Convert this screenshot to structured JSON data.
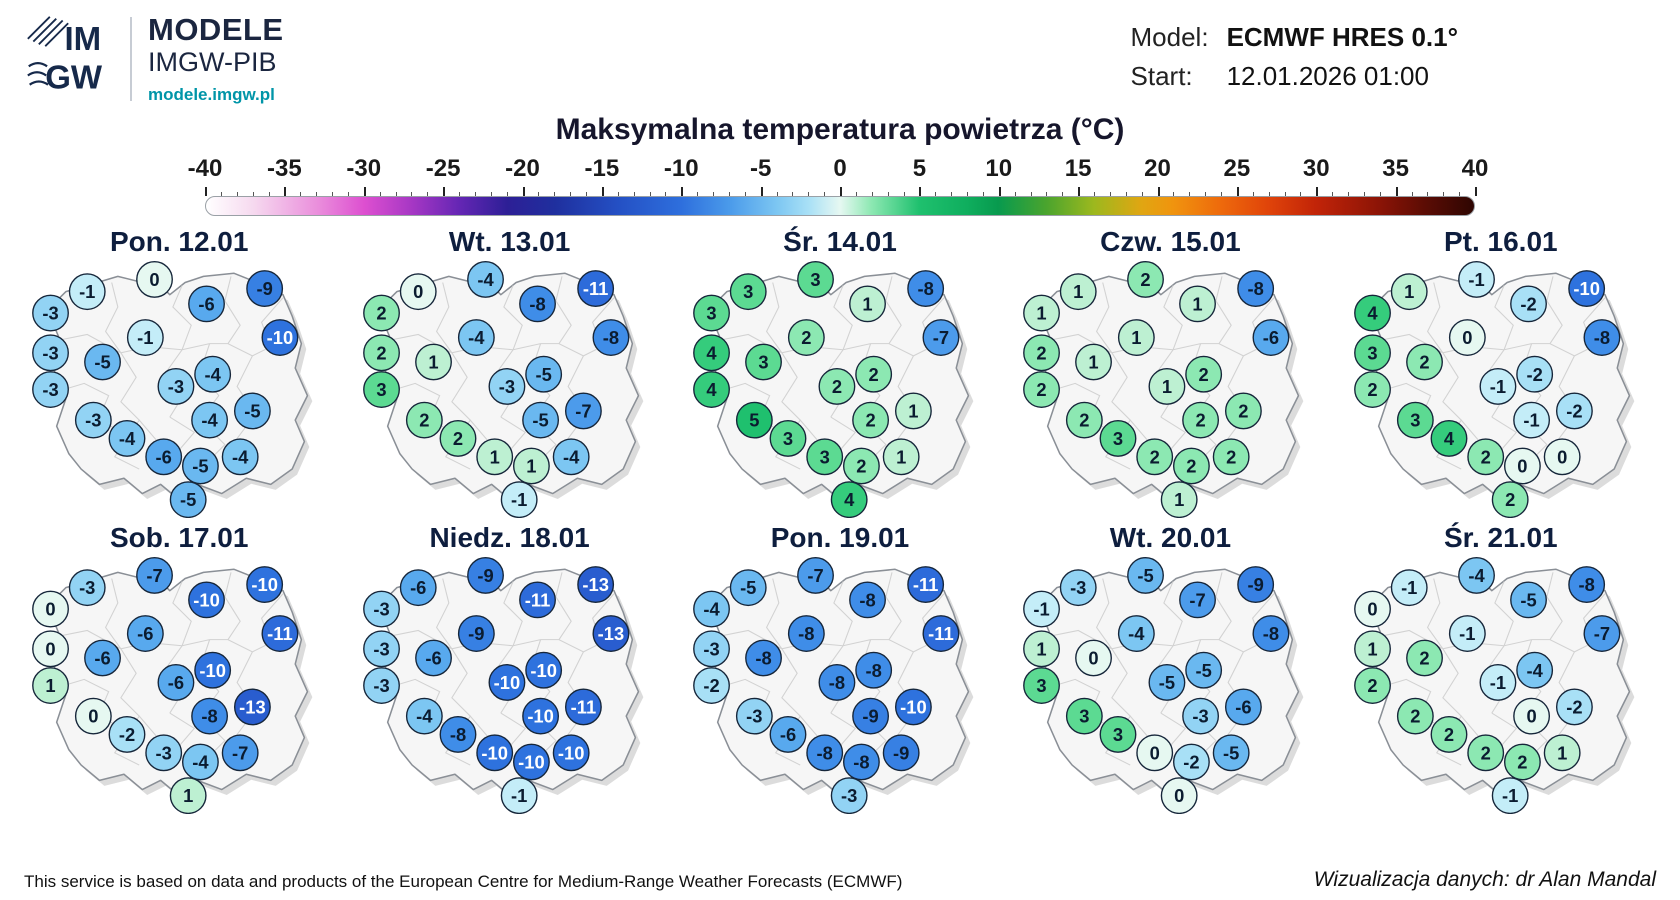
{
  "header": {
    "logo_text_top": "IM",
    "logo_text_bottom": "GW",
    "brand_title": "MODELE",
    "brand_subtitle": "IMGW-PIB",
    "brand_url": "modele.imgw.pl",
    "model_label": "Model:",
    "model_value": "ECMWF HRES 0.1°",
    "start_label": "Start:",
    "start_value": "12.01.2026 01:00"
  },
  "title": "Maksymalna temperatura powietrza (°C)",
  "colorbar": {
    "min": -40,
    "max": 40,
    "tick_labels": [
      -40,
      -35,
      -30,
      -25,
      -20,
      -15,
      -10,
      -5,
      0,
      5,
      10,
      15,
      20,
      25,
      30,
      35,
      40
    ],
    "gradient_stops": [
      [
        -40,
        "#ffffff"
      ],
      [
        -37,
        "#f6d9ef"
      ],
      [
        -33,
        "#ea8fdc"
      ],
      [
        -30,
        "#dd4fd0"
      ],
      [
        -27,
        "#a637c4"
      ],
      [
        -24,
        "#6426b4"
      ],
      [
        -21,
        "#2d1f96"
      ],
      [
        -18,
        "#1f2f9e"
      ],
      [
        -14,
        "#2450c4"
      ],
      [
        -10,
        "#2e6fdd"
      ],
      [
        -7,
        "#4a9aea"
      ],
      [
        -4,
        "#7cc6f2"
      ],
      [
        -2,
        "#a8e0f6"
      ],
      [
        0,
        "#e6f8f2"
      ],
      [
        2,
        "#8ce8b2"
      ],
      [
        5,
        "#1fc06e"
      ],
      [
        8,
        "#0fae5e"
      ],
      [
        10,
        "#089a4e"
      ],
      [
        13,
        "#4aa42e"
      ],
      [
        16,
        "#9cb81e"
      ],
      [
        19,
        "#e0a612"
      ],
      [
        21,
        "#f0940e"
      ],
      [
        24,
        "#ee6a0c"
      ],
      [
        27,
        "#e0440a"
      ],
      [
        30,
        "#c22408"
      ],
      [
        34,
        "#8c1406"
      ],
      [
        37,
        "#5a0c04"
      ],
      [
        40,
        "#2e0602"
      ]
    ]
  },
  "bubble_scale": {
    "white_text_max": -10,
    "stops": [
      [
        -20,
        "#1a2f9e"
      ],
      [
        -12,
        "#2b63d6"
      ],
      [
        -10,
        "#2e72de"
      ],
      [
        -8,
        "#3f8de8"
      ],
      [
        -6,
        "#58a9ee"
      ],
      [
        -4,
        "#7cc6f2"
      ],
      [
        -2,
        "#a8e0f6"
      ],
      [
        -1,
        "#c4edf8"
      ],
      [
        0,
        "#e6f8f1"
      ],
      [
        1,
        "#bdf0d2"
      ],
      [
        2,
        "#8ce8b2"
      ],
      [
        3,
        "#5cda92"
      ],
      [
        4,
        "#35cc7c"
      ],
      [
        5,
        "#1fc06e"
      ],
      [
        10,
        "#089a4e"
      ]
    ]
  },
  "chart_data": {
    "type": "heatmap",
    "title": "Maksymalna temperatura powietrza (°C)",
    "unit": "°C",
    "scale_min": -40,
    "scale_max": 40,
    "legend_position": "top",
    "points": [
      {
        "x": 20,
        "y": 11
      },
      {
        "x": 42,
        "y": 7
      },
      {
        "x": 59,
        "y": 15
      },
      {
        "x": 78,
        "y": 10
      },
      {
        "x": 8,
        "y": 18
      },
      {
        "x": 39,
        "y": 26
      },
      {
        "x": 83,
        "y": 26
      },
      {
        "x": 8,
        "y": 31
      },
      {
        "x": 25,
        "y": 34
      },
      {
        "x": 61,
        "y": 38
      },
      {
        "x": 8,
        "y": 43
      },
      {
        "x": 49,
        "y": 42
      },
      {
        "x": 22,
        "y": 53
      },
      {
        "x": 60,
        "y": 53
      },
      {
        "x": 74,
        "y": 50
      },
      {
        "x": 33,
        "y": 59
      },
      {
        "x": 45,
        "y": 65
      },
      {
        "x": 57,
        "y": 68
      },
      {
        "x": 70,
        "y": 65
      },
      {
        "x": 53,
        "y": 79
      }
    ],
    "series": [
      {
        "name": "Pon. 12.01",
        "values": [
          -1,
          0,
          -6,
          -9,
          -3,
          -1,
          -10,
          -3,
          -5,
          -4,
          -3,
          -3,
          -3,
          -4,
          -5,
          -4,
          -6,
          -5,
          -4,
          -5
        ]
      },
      {
        "name": "Wt. 13.01",
        "values": [
          0,
          -4,
          -8,
          -11,
          2,
          -4,
          -8,
          2,
          1,
          -5,
          3,
          -3,
          2,
          -5,
          -7,
          2,
          1,
          1,
          -4,
          -1
        ]
      },
      {
        "name": "Śr. 14.01",
        "values": [
          3,
          3,
          1,
          -8,
          3,
          2,
          -7,
          4,
          3,
          2,
          4,
          2,
          5,
          2,
          1,
          3,
          3,
          2,
          1,
          4
        ]
      },
      {
        "name": "Czw. 15.01",
        "values": [
          1,
          2,
          1,
          -8,
          1,
          1,
          -6,
          2,
          1,
          2,
          2,
          1,
          2,
          2,
          2,
          3,
          2,
          2,
          2,
          1
        ]
      },
      {
        "name": "Pt. 16.01",
        "values": [
          1,
          -1,
          -2,
          -10,
          4,
          0,
          -8,
          3,
          2,
          -2,
          2,
          -1,
          3,
          -1,
          -2,
          4,
          2,
          0,
          0,
          2
        ]
      },
      {
        "name": "Sob. 17.01",
        "values": [
          -3,
          -7,
          -10,
          -10,
          0,
          -6,
          -11,
          0,
          -6,
          -10,
          1,
          -6,
          0,
          -8,
          -13,
          -2,
          -3,
          -4,
          -7,
          1
        ]
      },
      {
        "name": "Niedz. 18.01",
        "values": [
          -6,
          -9,
          -11,
          -13,
          -3,
          -9,
          -13,
          -3,
          -6,
          -10,
          -3,
          -10,
          -4,
          -10,
          -11,
          -8,
          -10,
          -10,
          -10,
          -1
        ]
      },
      {
        "name": "Pon. 19.01",
        "values": [
          -5,
          -7,
          -8,
          -11,
          -4,
          -8,
          -11,
          -3,
          -8,
          -8,
          -2,
          -8,
          -3,
          -9,
          -10,
          -6,
          -8,
          -8,
          -9,
          -3
        ]
      },
      {
        "name": "Wt. 20.01",
        "values": [
          -3,
          -5,
          -7,
          -9,
          -1,
          -4,
          -8,
          1,
          0,
          -5,
          3,
          -5,
          3,
          -3,
          -6,
          3,
          0,
          -2,
          -5,
          0
        ]
      },
      {
        "name": "Śr. 21.01",
        "values": [
          -1,
          -4,
          -5,
          -8,
          0,
          -1,
          -7,
          1,
          2,
          -4,
          2,
          -1,
          2,
          0,
          -2,
          2,
          2,
          2,
          1,
          -1
        ]
      }
    ]
  },
  "footer": {
    "attribution": "This service is based on data and products of the European Centre for Medium-Range Weather Forecasts (ECMWF)",
    "credit": "Wizualizacja danych: dr Alan Mandal"
  }
}
